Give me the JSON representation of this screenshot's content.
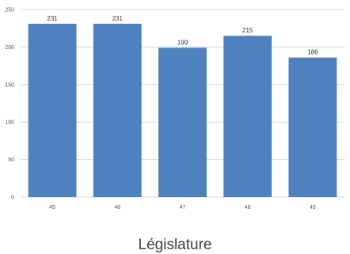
{
  "chart_data": {
    "type": "bar",
    "categories": [
      "45",
      "46",
      "47",
      "48",
      "49"
    ],
    "values": [
      231,
      231,
      199,
      215,
      186
    ],
    "data_labels": [
      "231",
      "231",
      "199",
      "215",
      "186"
    ],
    "title": "",
    "xlabel": "Législature",
    "ylabel": "",
    "ylim": [
      0,
      250
    ],
    "yticks": [
      "0",
      "50",
      "100",
      "150",
      "200",
      "250"
    ],
    "ytick_values": [
      0,
      50,
      100,
      150,
      200,
      250
    ],
    "grid": true,
    "legend": "none",
    "bar_color": "#4e81bd",
    "grid_color": "#d9d9d9"
  }
}
